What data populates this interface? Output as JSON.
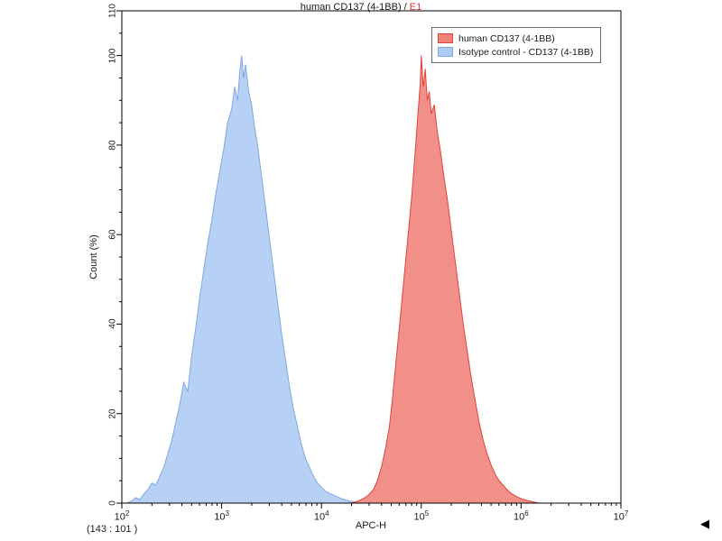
{
  "title": {
    "left": "human CD137 (4-1BB) / ",
    "run_id": "E1"
  },
  "footer": {
    "stat": "(143 : 101 )",
    "marker": "◀"
  },
  "chart_data": {
    "type": "area",
    "title": "human CD137 (4-1BB) / E1",
    "xlabel": "APC-H",
    "ylabel": "Count  (%)",
    "x_scale": "log10",
    "xlim_log10": [
      2,
      7
    ],
    "x_tick_exponents": [
      2,
      3,
      4,
      5,
      6,
      7
    ],
    "ylim": [
      0,
      110
    ],
    "y_ticks": [
      0,
      20,
      40,
      60,
      80,
      100,
      110
    ],
    "grid": false,
    "legend_position": "top-right",
    "axis_color": "#000000",
    "series": [
      {
        "name": "human CD137 (4-1BB)",
        "fill": "#F0837C",
        "stroke": "#E0443C",
        "peak_log10x": 5.0,
        "peak_percent": 100,
        "points_log10x_y": [
          [
            4.3,
            0
          ],
          [
            4.36,
            0.4
          ],
          [
            4.42,
            1
          ],
          [
            4.47,
            1.8
          ],
          [
            4.52,
            3
          ],
          [
            4.56,
            5
          ],
          [
            4.6,
            8
          ],
          [
            4.64,
            12
          ],
          [
            4.68,
            17
          ],
          [
            4.71,
            23
          ],
          [
            4.74,
            30
          ],
          [
            4.77,
            37
          ],
          [
            4.8,
            44
          ],
          [
            4.83,
            51
          ],
          [
            4.86,
            58
          ],
          [
            4.89,
            65
          ],
          [
            4.91,
            70
          ],
          [
            4.93,
            76
          ],
          [
            4.95,
            82
          ],
          [
            4.97,
            88
          ],
          [
            4.99,
            94
          ],
          [
            5.0,
            100
          ],
          [
            5.02,
            93
          ],
          [
            5.04,
            97
          ],
          [
            5.06,
            90
          ],
          [
            5.08,
            92
          ],
          [
            5.1,
            87
          ],
          [
            5.13,
            89
          ],
          [
            5.16,
            83
          ],
          [
            5.19,
            79
          ],
          [
            5.22,
            74
          ],
          [
            5.26,
            68
          ],
          [
            5.3,
            61
          ],
          [
            5.34,
            54
          ],
          [
            5.38,
            47
          ],
          [
            5.42,
            40
          ],
          [
            5.46,
            34
          ],
          [
            5.5,
            28
          ],
          [
            5.54,
            23
          ],
          [
            5.58,
            18
          ],
          [
            5.62,
            14
          ],
          [
            5.66,
            11
          ],
          [
            5.7,
            8.5
          ],
          [
            5.74,
            6.5
          ],
          [
            5.78,
            5
          ],
          [
            5.82,
            4
          ],
          [
            5.86,
            3
          ],
          [
            5.9,
            2.2
          ],
          [
            5.95,
            1.5
          ],
          [
            6.0,
            1
          ],
          [
            6.06,
            0.6
          ],
          [
            6.12,
            0.3
          ],
          [
            6.18,
            0
          ]
        ]
      },
      {
        "name": "Isotype control - CD137 (4-1BB)",
        "fill": "#AFCBF5",
        "stroke": "#7FA8DF",
        "peak_log10x": 3.2,
        "peak_percent": 100,
        "points_log10x_y": [
          [
            2.05,
            0
          ],
          [
            2.1,
            0.5
          ],
          [
            2.14,
            1.2
          ],
          [
            2.18,
            0.8
          ],
          [
            2.22,
            2
          ],
          [
            2.26,
            3
          ],
          [
            2.3,
            4.5
          ],
          [
            2.34,
            4
          ],
          [
            2.38,
            6
          ],
          [
            2.42,
            8
          ],
          [
            2.46,
            11
          ],
          [
            2.5,
            14
          ],
          [
            2.54,
            18
          ],
          [
            2.58,
            22
          ],
          [
            2.62,
            27
          ],
          [
            2.66,
            25
          ],
          [
            2.7,
            33
          ],
          [
            2.74,
            39
          ],
          [
            2.78,
            46
          ],
          [
            2.82,
            52
          ],
          [
            2.86,
            58
          ],
          [
            2.9,
            63
          ],
          [
            2.94,
            69
          ],
          [
            2.98,
            74
          ],
          [
            3.02,
            79
          ],
          [
            3.06,
            85
          ],
          [
            3.1,
            88
          ],
          [
            3.13,
            93
          ],
          [
            3.16,
            90
          ],
          [
            3.18,
            96
          ],
          [
            3.2,
            100
          ],
          [
            3.22,
            95
          ],
          [
            3.24,
            98
          ],
          [
            3.27,
            92
          ],
          [
            3.3,
            89
          ],
          [
            3.33,
            84
          ],
          [
            3.36,
            80
          ],
          [
            3.4,
            73
          ],
          [
            3.44,
            66
          ],
          [
            3.48,
            59
          ],
          [
            3.52,
            52
          ],
          [
            3.56,
            45
          ],
          [
            3.6,
            38
          ],
          [
            3.64,
            32
          ],
          [
            3.68,
            26
          ],
          [
            3.72,
            21
          ],
          [
            3.76,
            17
          ],
          [
            3.8,
            13
          ],
          [
            3.84,
            10
          ],
          [
            3.88,
            8
          ],
          [
            3.92,
            6
          ],
          [
            3.96,
            4.5
          ],
          [
            4.0,
            3.5
          ],
          [
            4.05,
            2.5
          ],
          [
            4.1,
            2
          ],
          [
            4.15,
            1.5
          ],
          [
            4.2,
            1
          ],
          [
            4.26,
            0.6
          ],
          [
            4.32,
            0.3
          ],
          [
            4.38,
            0
          ]
        ]
      }
    ]
  }
}
